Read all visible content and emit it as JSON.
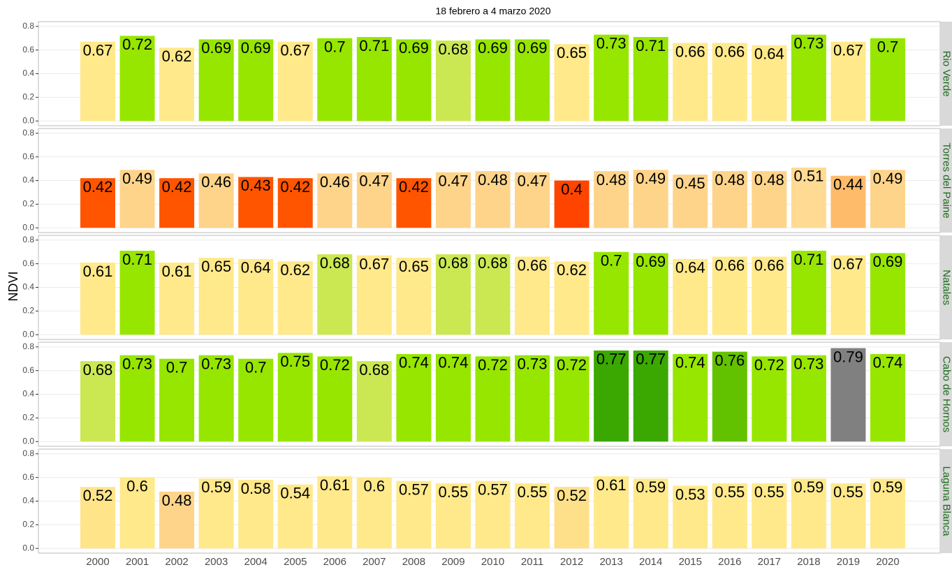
{
  "chart_data": {
    "type": "bar",
    "title": "18 febrero a 4 marzo 2020",
    "y_label": "NDVI",
    "categories": [
      "2000",
      "2001",
      "2002",
      "2003",
      "2004",
      "2005",
      "2006",
      "2007",
      "2008",
      "2009",
      "2010",
      "2011",
      "2012",
      "2013",
      "2014",
      "2015",
      "2016",
      "2017",
      "2018",
      "2019",
      "2020"
    ],
    "ylim": [
      -0.04,
      0.84
    ],
    "yticks": [
      {
        "value": 0,
        "label": "0.0"
      },
      0.2,
      0.4,
      0.6,
      0.8
    ],
    "grid": true,
    "facets": [
      {
        "name": "Rio Verde",
        "values": [
          0.67,
          0.72,
          0.62,
          0.69,
          0.69,
          0.67,
          0.7,
          0.71,
          0.69,
          0.68,
          0.69,
          0.69,
          0.65,
          0.73,
          0.71,
          0.66,
          0.66,
          0.64,
          0.73,
          0.67,
          0.7
        ],
        "colors": [
          "#FFE98A",
          "#96E600",
          "#FFE98A",
          "#96E600",
          "#96E600",
          "#FFE98A",
          "#96E600",
          "#96E600",
          "#96E600",
          "#CBE853",
          "#96E600",
          "#96E600",
          "#FFE98A",
          "#96E600",
          "#96E600",
          "#FFE98A",
          "#FFE98A",
          "#FFE98A",
          "#96E600",
          "#FFE98A",
          "#96E600"
        ]
      },
      {
        "name": "Torres del Paine",
        "values": [
          0.42,
          0.49,
          0.42,
          0.46,
          0.43,
          0.42,
          0.46,
          0.47,
          0.42,
          0.47,
          0.48,
          0.47,
          0.4,
          0.48,
          0.49,
          0.45,
          0.48,
          0.48,
          0.51,
          0.44,
          0.49
        ],
        "colors": [
          "#FF5500",
          "#FED48A",
          "#FF5500",
          "#FED48A",
          "#FF5500",
          "#FF5500",
          "#FED48A",
          "#FED48A",
          "#FF5500",
          "#FED48A",
          "#FED48A",
          "#FED48A",
          "#FF4400",
          "#FED48A",
          "#FED48A",
          "#FED48A",
          "#FED48A",
          "#FED48A",
          "#FFDA92",
          "#FEBB6A",
          "#FED48A"
        ]
      },
      {
        "name": "Natales",
        "values": [
          0.61,
          0.71,
          0.61,
          0.65,
          0.64,
          0.62,
          0.68,
          0.67,
          0.65,
          0.68,
          0.68,
          0.66,
          0.62,
          0.7,
          0.69,
          0.64,
          0.66,
          0.66,
          0.71,
          0.67,
          0.69
        ],
        "colors": [
          "#FFE98A",
          "#96E600",
          "#FFE98A",
          "#FFE98A",
          "#FFE98A",
          "#FFE98A",
          "#CBE853",
          "#FFE98A",
          "#FFE98A",
          "#CBE853",
          "#CBE853",
          "#FFE98A",
          "#FFE98A",
          "#96E600",
          "#96E600",
          "#FFE98A",
          "#FFE98A",
          "#FFE98A",
          "#96E600",
          "#FFE98A",
          "#96E600"
        ]
      },
      {
        "name": "Cabo de Hornos",
        "values": [
          0.68,
          0.73,
          0.7,
          0.73,
          0.7,
          0.75,
          0.72,
          0.68,
          0.74,
          0.74,
          0.72,
          0.73,
          0.72,
          0.77,
          0.77,
          0.74,
          0.76,
          0.72,
          0.73,
          0.79,
          0.74
        ],
        "colors": [
          "#CBE853",
          "#96E600",
          "#96E600",
          "#96E600",
          "#96E600",
          "#96E600",
          "#96E600",
          "#CBE853",
          "#96E600",
          "#96E600",
          "#96E600",
          "#96E600",
          "#96E600",
          "#3AA800",
          "#3AA800",
          "#96E600",
          "#63C200",
          "#96E600",
          "#96E600",
          "#808080",
          "#96E600"
        ]
      },
      {
        "name": "Laguna Blanca",
        "values": [
          0.52,
          0.6,
          0.48,
          0.59,
          0.58,
          0.54,
          0.61,
          0.6,
          0.57,
          0.55,
          0.57,
          0.55,
          0.52,
          0.61,
          0.59,
          0.53,
          0.55,
          0.55,
          0.59,
          0.55,
          0.59
        ],
        "colors": [
          "#FFE48A",
          "#FFE98A",
          "#FED48A",
          "#FFE98A",
          "#FFE98A",
          "#FFE98A",
          "#FFE98A",
          "#FFE98A",
          "#FFE98A",
          "#FFE98A",
          "#FFE98A",
          "#FFE98A",
          "#FFE08A",
          "#FFE98A",
          "#FFE98A",
          "#FFE98A",
          "#FFE98A",
          "#FFE98A",
          "#FFE98A",
          "#FFE98A",
          "#FFE98A"
        ]
      }
    ]
  }
}
